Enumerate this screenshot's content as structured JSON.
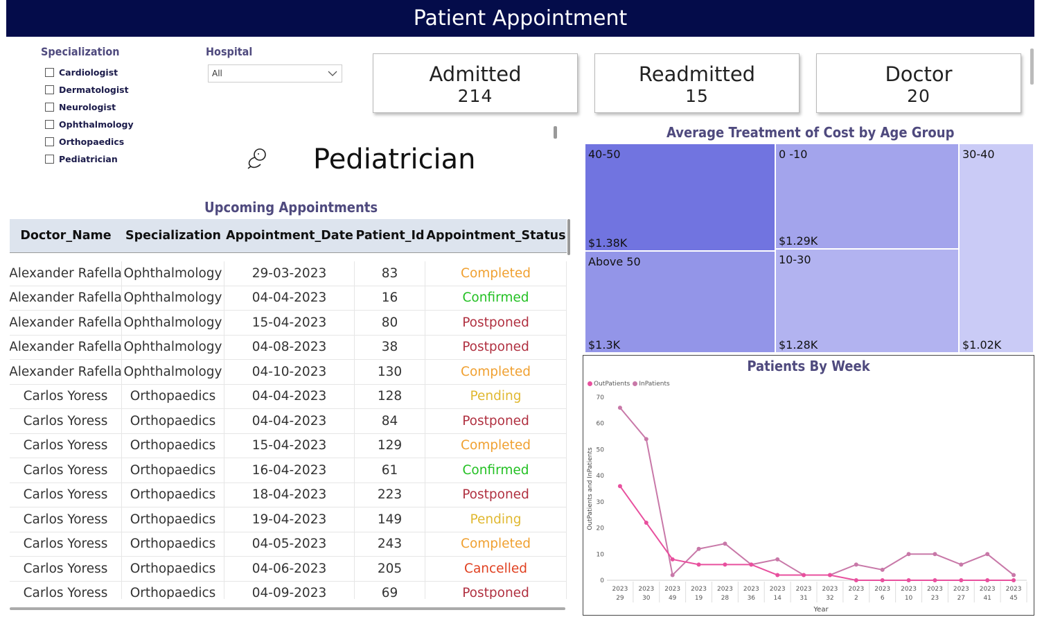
{
  "header": {
    "title": "Patient Appointment"
  },
  "filters": {
    "specialization": {
      "title": "Specialization",
      "options": [
        "Cardiologist",
        "Dermatologist",
        "Neurologist",
        "Ophthalmology",
        "Orthopaedics",
        "Pediatrician"
      ]
    },
    "hospital": {
      "title": "Hospital",
      "selected": "All"
    }
  },
  "kpis": [
    {
      "label": "Admitted",
      "value": "214"
    },
    {
      "label": "Readmitted",
      "value": "15"
    },
    {
      "label": "Doctor",
      "value": "20"
    }
  ],
  "featured": {
    "name": "Pediatrician",
    "icon": "baby-icon"
  },
  "appointments": {
    "title": "Upcoming Appointments",
    "columns": [
      "Doctor_Name",
      "Specialization",
      "Appointment_Date",
      "Patient_Id",
      "Appointment_Status"
    ],
    "rows": [
      [
        "Alexander Rafella",
        "Ophthalmology",
        "29-03-2023",
        "83",
        "Completed"
      ],
      [
        "Alexander Rafella",
        "Ophthalmology",
        "04-04-2023",
        "16",
        "Confirmed"
      ],
      [
        "Alexander Rafella",
        "Ophthalmology",
        "15-04-2023",
        "80",
        "Postponed"
      ],
      [
        "Alexander Rafella",
        "Ophthalmology",
        "04-08-2023",
        "38",
        "Postponed"
      ],
      [
        "Alexander Rafella",
        "Ophthalmology",
        "04-10-2023",
        "130",
        "Completed"
      ],
      [
        "Carlos Yoress",
        "Orthopaedics",
        "04-04-2023",
        "128",
        "Pending"
      ],
      [
        "Carlos Yoress",
        "Orthopaedics",
        "04-04-2023",
        "84",
        "Postponed"
      ],
      [
        "Carlos Yoress",
        "Orthopaedics",
        "15-04-2023",
        "129",
        "Completed"
      ],
      [
        "Carlos Yoress",
        "Orthopaedics",
        "16-04-2023",
        "61",
        "Confirmed"
      ],
      [
        "Carlos Yoress",
        "Orthopaedics",
        "18-04-2023",
        "223",
        "Postponed"
      ],
      [
        "Carlos Yoress",
        "Orthopaedics",
        "19-04-2023",
        "149",
        "Pending"
      ],
      [
        "Carlos Yoress",
        "Orthopaedics",
        "04-05-2023",
        "243",
        "Completed"
      ],
      [
        "Carlos Yoress",
        "Orthopaedics",
        "04-06-2023",
        "205",
        "Cancelled"
      ],
      [
        "Carlos Yoress",
        "Orthopaedics",
        "04-09-2023",
        "69",
        "Postponed"
      ]
    ],
    "status_colors": {
      "Completed": "#F0A030",
      "Confirmed": "#22C022",
      "Postponed": "#B03040",
      "Pending": "#E0B830",
      "Cancelled": "#E04020"
    }
  },
  "chart_data": [
    {
      "type": "treemap",
      "title": "Average Treatment of Cost by Age Group",
      "tiles": [
        {
          "name": "40-50",
          "value": 1.38,
          "label": "$1.38K",
          "color": "#7174E0"
        },
        {
          "name": "Above 50",
          "value": 1.3,
          "label": "$1.3K",
          "color": "#9395E8"
        },
        {
          "name": "0 -10",
          "value": 1.29,
          "label": "$1.29K",
          "color": "#A3A4EC"
        },
        {
          "name": "10-30",
          "value": 1.28,
          "label": "$1.28K",
          "color": "#B2B3F0"
        },
        {
          "name": "30-40",
          "value": 1.02,
          "label": "$1.02K",
          "color": "#CACBF6"
        }
      ]
    },
    {
      "type": "line",
      "title": "Patients By Week",
      "xlabel": "Year",
      "ylabel": "OutPatients and InPatients",
      "ylim": [
        0,
        70
      ],
      "yticks": [
        0,
        10,
        20,
        30,
        40,
        50,
        60,
        70
      ],
      "categories": [
        [
          "2023",
          "29"
        ],
        [
          "2023",
          "30"
        ],
        [
          "2023",
          "49"
        ],
        [
          "2023",
          "19"
        ],
        [
          "2023",
          "28"
        ],
        [
          "2023",
          "36"
        ],
        [
          "2023",
          "14"
        ],
        [
          "2023",
          "31"
        ],
        [
          "2023",
          "32"
        ],
        [
          "2023",
          "2"
        ],
        [
          "2023",
          "6"
        ],
        [
          "2023",
          "10"
        ],
        [
          "2023",
          "23"
        ],
        [
          "2023",
          "27"
        ],
        [
          "2023",
          "41"
        ],
        [
          "2023",
          "45"
        ]
      ],
      "series": [
        {
          "name": "OutPatients",
          "color": "#E8509E",
          "values": [
            36,
            22,
            8,
            6,
            6,
            6,
            2,
            2,
            2,
            0,
            0,
            0,
            0,
            0,
            0,
            0
          ]
        },
        {
          "name": "InPatients",
          "color": "#C878A8",
          "values": [
            66,
            54,
            2,
            12,
            14,
            6,
            8,
            2,
            2,
            6,
            4,
            10,
            10,
            6,
            10,
            2
          ]
        }
      ]
    }
  ]
}
